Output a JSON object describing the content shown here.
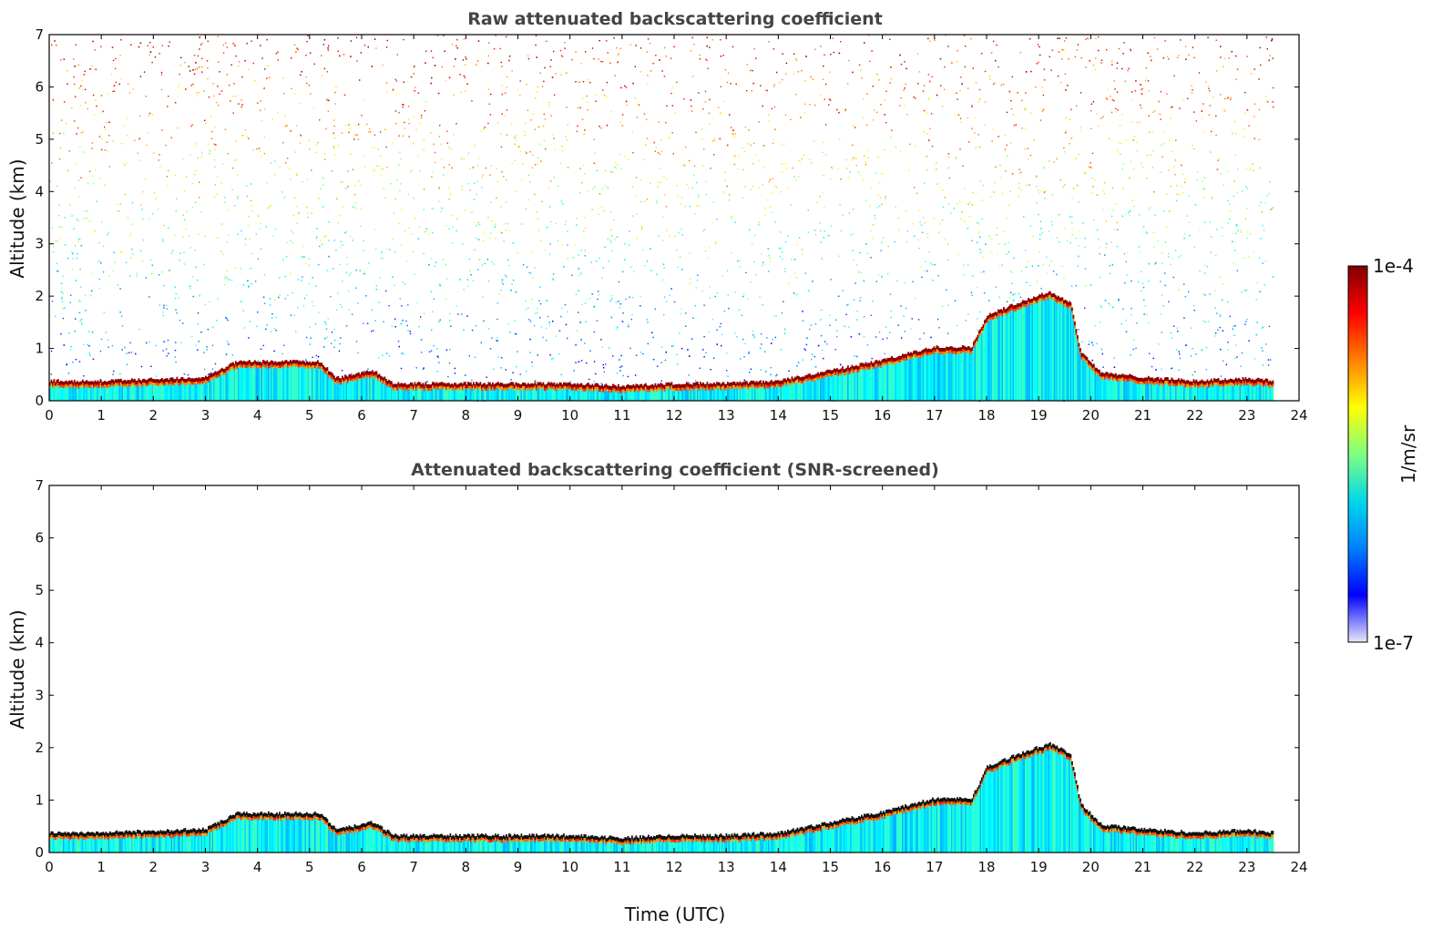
{
  "chart_data": [
    {
      "type": "heatmap",
      "title": "Raw attenuated backscattering coefficient",
      "xlabel": "",
      "ylabel": "Altitude (km)",
      "xlim": [
        0,
        24
      ],
      "ylim": [
        0,
        7
      ],
      "xticks": [
        "0",
        "1",
        "2",
        "3",
        "4",
        "5",
        "6",
        "7",
        "8",
        "9",
        "10",
        "11",
        "12",
        "13",
        "14",
        "15",
        "16",
        "17",
        "18",
        "19",
        "20",
        "21",
        "22",
        "23",
        "24"
      ],
      "yticks": [
        "0",
        "1",
        "2",
        "3",
        "4",
        "5",
        "6",
        "7"
      ],
      "data_end_hour": 23.5,
      "noisy_background": true,
      "boundary_layer_top_km": [
        [
          0,
          0.35
        ],
        [
          1,
          0.35
        ],
        [
          2,
          0.38
        ],
        [
          3,
          0.42
        ],
        [
          3.6,
          0.72
        ],
        [
          4.5,
          0.72
        ],
        [
          5.2,
          0.72
        ],
        [
          5.5,
          0.4
        ],
        [
          6.2,
          0.55
        ],
        [
          6.6,
          0.3
        ],
        [
          8,
          0.3
        ],
        [
          10,
          0.3
        ],
        [
          11,
          0.25
        ],
        [
          12,
          0.3
        ],
        [
          13,
          0.3
        ],
        [
          14,
          0.35
        ],
        [
          15,
          0.55
        ],
        [
          16,
          0.75
        ],
        [
          17,
          1.0
        ],
        [
          17.7,
          1.0
        ],
        [
          18,
          1.6
        ],
        [
          18.6,
          1.85
        ],
        [
          19.2,
          2.05
        ],
        [
          19.6,
          1.85
        ],
        [
          19.8,
          0.9
        ],
        [
          20.2,
          0.5
        ],
        [
          21,
          0.42
        ],
        [
          22,
          0.35
        ],
        [
          23,
          0.4
        ],
        [
          23.5,
          0.35
        ]
      ]
    },
    {
      "type": "heatmap",
      "title": "Attenuated backscattering coefficient (SNR-screened)",
      "xlabel": "Time (UTC)",
      "ylabel": "Altitude (km)",
      "xlim": [
        0,
        24
      ],
      "ylim": [
        0,
        7
      ],
      "xticks": [
        "0",
        "1",
        "2",
        "3",
        "4",
        "5",
        "6",
        "7",
        "8",
        "9",
        "10",
        "11",
        "12",
        "13",
        "14",
        "15",
        "16",
        "17",
        "18",
        "19",
        "20",
        "21",
        "22",
        "23",
        "24"
      ],
      "yticks": [
        "0",
        "1",
        "2",
        "3",
        "4",
        "5",
        "6",
        "7"
      ],
      "data_end_hour": 23.5,
      "noisy_background": false,
      "boundary_layer_top_km": [
        [
          0,
          0.35
        ],
        [
          1,
          0.35
        ],
        [
          2,
          0.38
        ],
        [
          3,
          0.42
        ],
        [
          3.6,
          0.72
        ],
        [
          4.5,
          0.72
        ],
        [
          5.2,
          0.72
        ],
        [
          5.5,
          0.4
        ],
        [
          6.2,
          0.55
        ],
        [
          6.6,
          0.3
        ],
        [
          8,
          0.3
        ],
        [
          10,
          0.3
        ],
        [
          11,
          0.25
        ],
        [
          12,
          0.3
        ],
        [
          13,
          0.3
        ],
        [
          14,
          0.35
        ],
        [
          15,
          0.55
        ],
        [
          16,
          0.75
        ],
        [
          17,
          1.0
        ],
        [
          17.7,
          1.0
        ],
        [
          18,
          1.6
        ],
        [
          18.6,
          1.85
        ],
        [
          19.2,
          2.05
        ],
        [
          19.6,
          1.85
        ],
        [
          19.8,
          0.9
        ],
        [
          20.2,
          0.5
        ],
        [
          21,
          0.42
        ],
        [
          22,
          0.35
        ],
        [
          23,
          0.4
        ],
        [
          23.5,
          0.35
        ]
      ]
    }
  ],
  "colorbar": {
    "max_label": "1e-4",
    "min_label": "1e-7",
    "unit_label": "1/m/sr",
    "colormap": "jet",
    "stops": [
      "#e8e8f8",
      "#0000ff",
      "#0080ff",
      "#00d8e8",
      "#80ff80",
      "#ffff00",
      "#ff8000",
      "#ff0000",
      "#800000"
    ]
  }
}
